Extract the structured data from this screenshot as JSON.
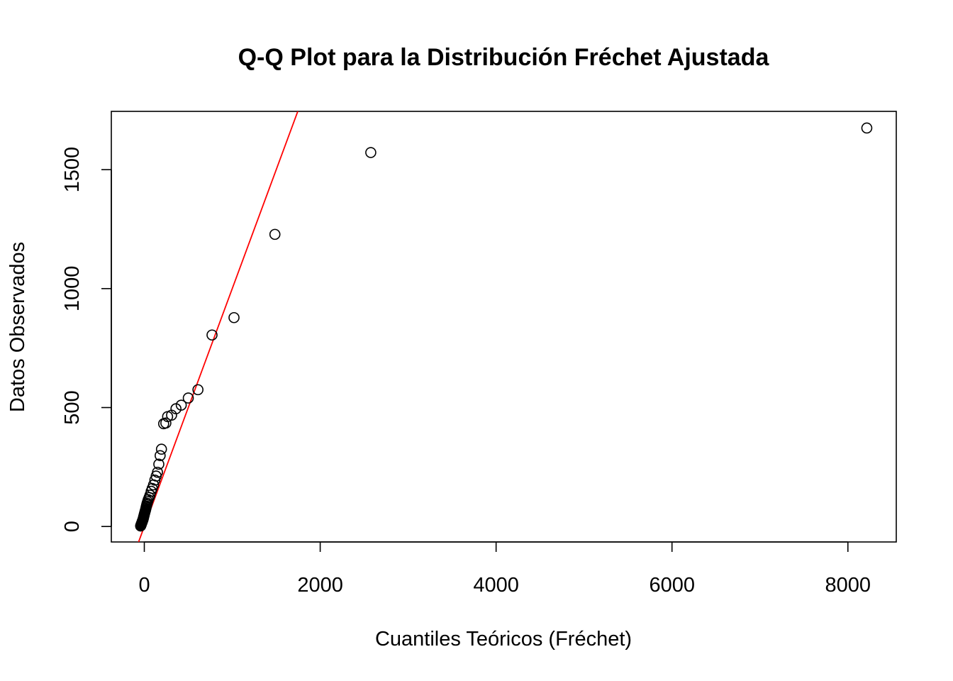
{
  "chart_data": {
    "type": "scatter",
    "title": "Q-Q Plot para la Distribución Fréchet Ajustada",
    "xlabel": "Cuantiles Teóricos (Fréchet)",
    "ylabel": "Datos Observados",
    "xlim": [
      -375,
      8550
    ],
    "ylim": [
      -65,
      1745
    ],
    "xticks": [
      0,
      2000,
      4000,
      6000,
      8000
    ],
    "xtick_labels": [
      "0",
      "2000",
      "4000",
      "6000",
      "8000"
    ],
    "yticks": [
      0,
      500,
      1000,
      1500
    ],
    "ytick_labels": [
      "0",
      "500",
      "1000",
      "1500"
    ],
    "grid": false,
    "legend": "none",
    "reference_line": {
      "intercept": 0,
      "slope": 1,
      "color": "#ff0000"
    },
    "point_color": "#000000",
    "points": [
      [
        -42,
        2
      ],
      [
        -40,
        4
      ],
      [
        -38,
        6
      ],
      [
        -36,
        8
      ],
      [
        -34,
        10
      ],
      [
        -32,
        12
      ],
      [
        -30,
        14
      ],
      [
        -28,
        16
      ],
      [
        -26,
        18
      ],
      [
        -24,
        20
      ],
      [
        -22,
        22
      ],
      [
        -20,
        24
      ],
      [
        -18,
        26
      ],
      [
        -16,
        28
      ],
      [
        -14,
        30
      ],
      [
        -12,
        33
      ],
      [
        -10,
        36
      ],
      [
        -8,
        39
      ],
      [
        -6,
        42
      ],
      [
        -4,
        45
      ],
      [
        -2,
        48
      ],
      [
        0,
        51
      ],
      [
        3,
        55
      ],
      [
        6,
        59
      ],
      [
        9,
        63
      ],
      [
        12,
        67
      ],
      [
        15,
        71
      ],
      [
        18,
        76
      ],
      [
        21,
        81
      ],
      [
        24,
        86
      ],
      [
        28,
        92
      ],
      [
        32,
        98
      ],
      [
        38,
        105
      ],
      [
        45,
        113
      ],
      [
        55,
        122
      ],
      [
        65,
        132
      ],
      [
        78,
        148
      ],
      [
        90,
        160
      ],
      [
        105,
        175
      ],
      [
        120,
        195
      ],
      [
        135,
        212
      ],
      [
        150,
        228
      ],
      [
        165,
        262
      ],
      [
        180,
        298
      ],
      [
        195,
        325
      ],
      [
        220,
        432
      ],
      [
        245,
        435
      ],
      [
        265,
        462
      ],
      [
        310,
        468
      ],
      [
        360,
        495
      ],
      [
        420,
        510
      ],
      [
        500,
        540
      ],
      [
        610,
        575
      ],
      [
        770,
        805
      ],
      [
        1020,
        878
      ],
      [
        1485,
        1228
      ],
      [
        2575,
        1572
      ],
      [
        8215,
        1675
      ]
    ]
  }
}
